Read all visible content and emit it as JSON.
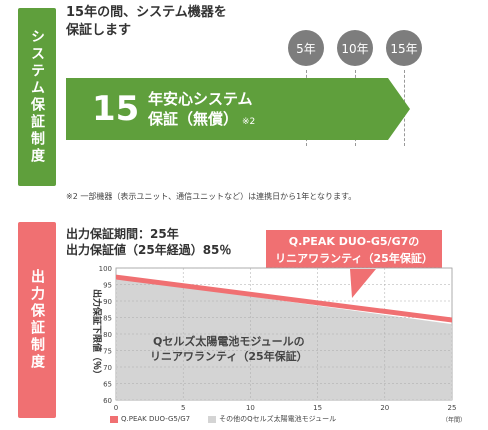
{
  "system": {
    "tab_label": "システム保証制度",
    "header_line1": "15年の間、システム機器を",
    "header_line2": "保証します",
    "years": [
      "5年",
      "10年",
      "15年"
    ],
    "arrow_number": "15",
    "arrow_line1": "年安心システム",
    "arrow_line2": "保証（無償）",
    "arrow_note_mark": "※2",
    "footnote": "※2 一部機器（表示ユニット、通信ユニットなど）は連携日から1年となります。"
  },
  "output": {
    "tab_label": "出力保証制度",
    "period_line": "出力保証期間：25年",
    "value_line": "出力保証値（25年経過）85％",
    "callout_line1": "Q.PEAK DUO-G5/G7の",
    "callout_line2": "リニアワランティ（25年保証）",
    "area_label_line1": "Qセルズ太陽電池モジュールの",
    "area_label_line2": "リニアワランティ（25年保証）",
    "legend": [
      {
        "label": "Q.PEAK DUO-G5/G7",
        "color": "#f07072"
      },
      {
        "label": "その他のQセルズ太陽電池モジュール",
        "color": "#d4d4d4"
      }
    ]
  },
  "colors": {
    "green": "#5f9f3c",
    "red": "#f07072",
    "gray_circle": "#7d7d7d",
    "area_gray": "#d4d4d4"
  },
  "chart_data": {
    "type": "area",
    "ylabel": "出力保証下限値（％）",
    "xunit": "（年間）",
    "xlim": [
      0,
      25
    ],
    "ylim": [
      60,
      100
    ],
    "xticks": [
      0,
      5,
      10,
      15,
      20,
      25
    ],
    "yticks": [
      60,
      65,
      70,
      75,
      80,
      85,
      90,
      95,
      100
    ],
    "grid": true,
    "series": [
      {
        "name": "Q.PEAK DUO-G5/G7",
        "type": "band",
        "x": [
          0,
          25
        ],
        "y": [
          98,
          85
        ]
      },
      {
        "name": "その他のQセルズ太陽電池モジュール",
        "type": "area",
        "x": [
          0,
          25
        ],
        "y": [
          97,
          83
        ]
      }
    ]
  }
}
